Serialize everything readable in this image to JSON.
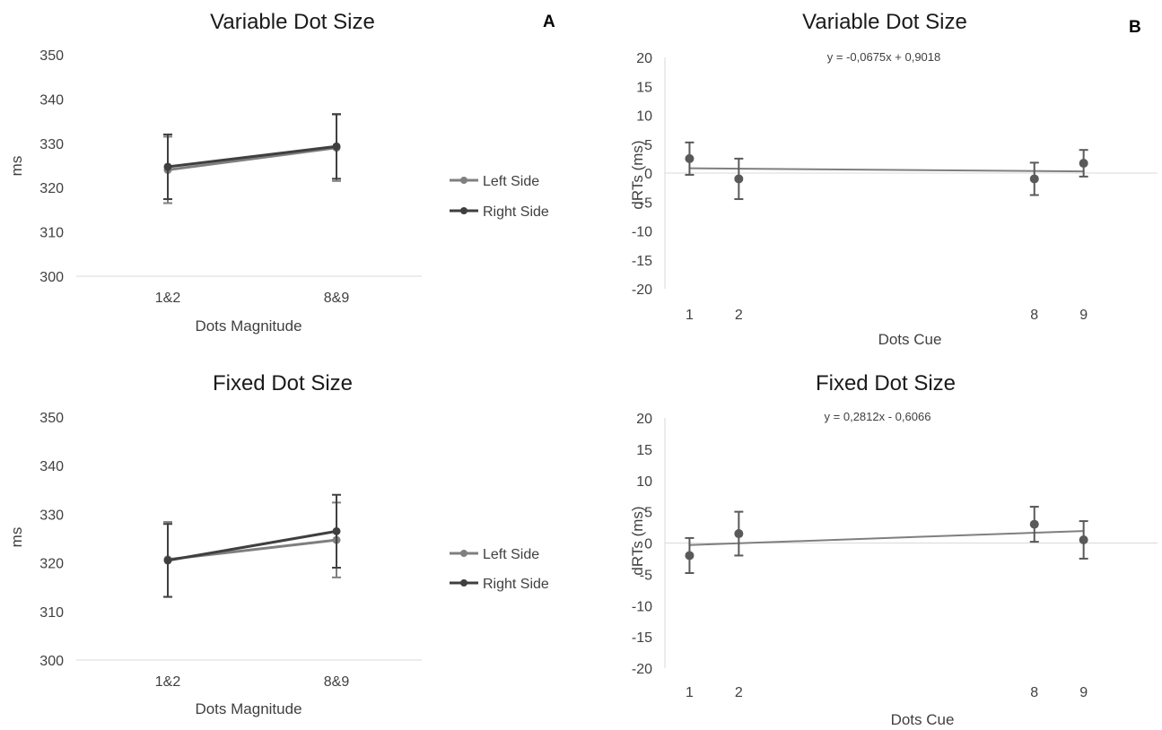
{
  "panel_letters": [
    "A",
    "B"
  ],
  "chart_data": [
    {
      "id": "A-top",
      "type": "line",
      "title": "Variable Dot Size",
      "xlabel": "Dots Magnitude",
      "ylabel": "ms",
      "categories": [
        "1&2",
        "8&9"
      ],
      "ylim": [
        300,
        350
      ],
      "yticks": [
        300,
        310,
        320,
        330,
        340,
        350
      ],
      "grid": false,
      "legend": "right",
      "series": [
        {
          "name": "Left Side",
          "color": "#7f7f7f",
          "values": [
            324,
            329
          ],
          "err": [
            7.5,
            7.5
          ]
        },
        {
          "name": "Right Side",
          "color": "#3f3f3f",
          "values": [
            324.7,
            329.3
          ],
          "err": [
            7.3,
            7.3
          ]
        }
      ]
    },
    {
      "id": "B-top",
      "type": "scatter",
      "title": "Variable Dot Size",
      "xlabel": "Dots Cue",
      "ylabel": "dRTs (ms)",
      "x": [
        1,
        2,
        8,
        9
      ],
      "xticks": [
        1,
        2,
        8,
        9
      ],
      "xlim": [
        0.5,
        10.5
      ],
      "ylim": [
        -20,
        20
      ],
      "yticks": [
        -20,
        -15,
        -10,
        -5,
        0,
        5,
        10,
        15,
        20
      ],
      "grid": false,
      "series": [
        {
          "color": "#595959",
          "values": [
            2.5,
            -1,
            -1,
            1.7
          ],
          "err": [
            2.8,
            3.5,
            2.8,
            2.3
          ]
        }
      ],
      "trendline": {
        "slope": -0.0675,
        "intercept": 0.9018,
        "label": "y = -0,0675x + 0,9018"
      }
    },
    {
      "id": "A-bottom",
      "type": "line",
      "title": "Fixed Dot Size",
      "xlabel": "Dots Magnitude",
      "ylabel": "ms",
      "categories": [
        "1&2",
        "8&9"
      ],
      "ylim": [
        300,
        350
      ],
      "yticks": [
        300,
        310,
        320,
        330,
        340,
        350
      ],
      "grid": false,
      "legend": "right",
      "series": [
        {
          "name": "Left Side",
          "color": "#7f7f7f",
          "values": [
            320.7,
            324.7
          ],
          "err": [
            7.7,
            7.7
          ]
        },
        {
          "name": "Right Side",
          "color": "#3f3f3f",
          "values": [
            320.5,
            326.5
          ],
          "err": [
            7.5,
            7.5
          ]
        }
      ]
    },
    {
      "id": "B-bottom",
      "type": "scatter",
      "title": "Fixed Dot Size",
      "xlabel": "Dots Cue",
      "ylabel": "dRTs (ms)",
      "x": [
        1,
        2,
        8,
        9
      ],
      "xticks": [
        1,
        2,
        8,
        9
      ],
      "xlim": [
        0.5,
        10.5
      ],
      "ylim": [
        -20,
        20
      ],
      "yticks": [
        -20,
        -15,
        -10,
        -5,
        0,
        5,
        10,
        15,
        20
      ],
      "grid": false,
      "series": [
        {
          "color": "#595959",
          "values": [
            -2,
            1.5,
            3,
            0.5
          ],
          "err": [
            2.8,
            3.5,
            2.8,
            3.0
          ]
        }
      ],
      "trendline": {
        "slope": 0.2812,
        "intercept": -0.6066,
        "label": "y = 0,2812x - 0,6066"
      }
    }
  ]
}
